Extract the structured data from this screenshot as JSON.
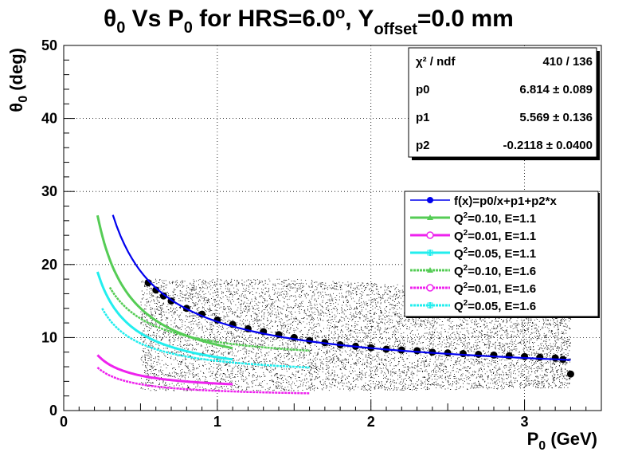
{
  "chart_data": {
    "type": "scatter",
    "title": {
      "theta": "θ",
      "sub0": "0",
      "mid1": " Vs P",
      "sub1": "0",
      "mid2": " for HRS=6.0",
      "deg": "o",
      "mid3": ", Y",
      "sub2": "offset",
      "end": "=0.0 mm"
    },
    "xlabel": {
      "main": "P",
      "sub": "0",
      "rest": " (GeV)"
    },
    "ylabel": {
      "main": "θ",
      "sub": "0",
      "rest": " (deg)"
    },
    "xlim": [
      0,
      3.5
    ],
    "ylim": [
      0,
      50
    ],
    "grid": true,
    "x_ticks": [
      "0",
      "1",
      "2",
      "3"
    ],
    "y_ticks": [
      "0",
      "10",
      "20",
      "30",
      "40",
      "50"
    ],
    "stats": [
      {
        "name": "χ² / ndf",
        "value": "410 / 136"
      },
      {
        "name": "p0",
        "value": "6.814 ± 0.089"
      },
      {
        "name": "p1",
        "value": "5.569 ± 0.136"
      },
      {
        "name": "p2",
        "value": "-0.2118 ± 0.0400"
      }
    ],
    "legend_position": "right",
    "legend": [
      {
        "label": "f(x)=p0/x+p1+p2*x",
        "color": "#0000ee",
        "marker": "circle"
      },
      {
        "label_pre": "Q",
        "label_sup": "2",
        "label_post": "=0.10, E=1.1",
        "color": "#55cc55",
        "marker": "triangle"
      },
      {
        "label_pre": "Q",
        "label_sup": "2",
        "label_post": "=0.01, E=1.1",
        "color": "#ee22ee",
        "marker": "open-circle"
      },
      {
        "label_pre": "Q",
        "label_sup": "2",
        "label_post": "=0.05, E=1.1",
        "color": "#22eeee",
        "marker": "cross"
      },
      {
        "label_pre": "Q",
        "label_sup": "2",
        "label_post": "=0.10, E=1.6",
        "color": "#55cc55",
        "marker": "triangle",
        "dashed": true
      },
      {
        "label_pre": "Q",
        "label_sup": "2",
        "label_post": "=0.01, E=1.6",
        "color": "#ee22ee",
        "marker": "open-circle",
        "dashed": true
      },
      {
        "label_pre": "Q",
        "label_sup": "2",
        "label_post": "=0.05, E=1.6",
        "color": "#22eeee",
        "marker": "cross",
        "dashed": true
      }
    ],
    "fit": {
      "p0": 6.814,
      "p1": 5.569,
      "p2": -0.2118,
      "x_range": [
        0.32,
        3.3
      ],
      "color": "#0000ee"
    },
    "scatter_region": {
      "x_range": [
        0.5,
        3.3
      ],
      "color": "#000000"
    },
    "profile": {
      "x": [
        0.55,
        0.6,
        0.65,
        0.7,
        0.8,
        0.9,
        1.0,
        1.1,
        1.2,
        1.3,
        1.4,
        1.5,
        1.6,
        1.7,
        1.8,
        1.9,
        2.0,
        2.1,
        2.2,
        2.3,
        2.4,
        2.5,
        2.6,
        2.7,
        2.8,
        2.9,
        3.0,
        3.1,
        3.2,
        3.25,
        3.3
      ],
      "y": [
        17.5,
        16.5,
        15.7,
        15.0,
        14.0,
        13.2,
        12.4,
        11.8,
        11.2,
        10.8,
        10.4,
        10.0,
        9.6,
        9.3,
        9.0,
        8.8,
        8.6,
        8.4,
        8.3,
        8.2,
        8.0,
        7.9,
        7.8,
        7.7,
        7.6,
        7.5,
        7.4,
        7.3,
        7.2,
        7.0,
        5.0
      ]
    },
    "series": [
      {
        "name": "Q2=0.10, E=1.1",
        "color": "#55cc55",
        "a": 5.0,
        "b": 4.0,
        "x_range": [
          0.22,
          1.1
        ],
        "dashed": false
      },
      {
        "name": "Q2=0.01, E=1.1",
        "color": "#ee22ee",
        "a": 1.1,
        "b": 2.6,
        "x_range": [
          0.22,
          1.1
        ],
        "dashed": false
      },
      {
        "name": "Q2=0.05, E=1.1",
        "color": "#22eeee",
        "a": 3.3,
        "b": 4.0,
        "x_range": [
          0.22,
          1.1
        ],
        "dashed": false
      },
      {
        "name": "Q2=0.10, E=1.6",
        "color": "#55cc55",
        "a": 3.2,
        "b": 6.2,
        "x_range": [
          0.3,
          1.6
        ],
        "dashed": true
      },
      {
        "name": "Q2=0.01, E=1.6",
        "color": "#ee22ee",
        "a": 0.9,
        "b": 1.8,
        "x_range": [
          0.22,
          1.6
        ],
        "dashed": true
      },
      {
        "name": "Q2=0.05, E=1.6",
        "color": "#22eeee",
        "a": 2.4,
        "b": 4.4,
        "x_range": [
          0.25,
          1.6
        ],
        "dashed": true
      }
    ]
  }
}
